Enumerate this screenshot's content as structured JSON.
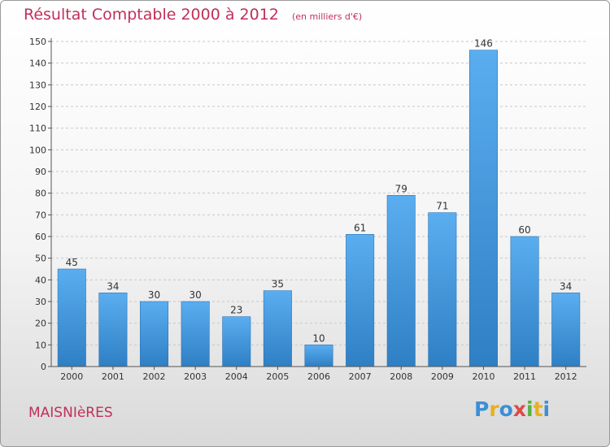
{
  "chart_data": {
    "type": "bar",
    "title": "Résultat Comptable 2000 à 2012",
    "subtitle": "(en milliers d'€)",
    "categories": [
      "2000",
      "2001",
      "2002",
      "2003",
      "2004",
      "2005",
      "2006",
      "2007",
      "2008",
      "2009",
      "2010",
      "2011",
      "2012"
    ],
    "values": [
      45,
      34,
      30,
      30,
      23,
      35,
      10,
      61,
      79,
      71,
      146,
      60,
      34
    ],
    "ylim": [
      0,
      150
    ],
    "yticks": [
      0,
      10,
      20,
      30,
      40,
      50,
      60,
      70,
      80,
      90,
      100,
      110,
      120,
      130,
      140,
      150
    ],
    "grid": true,
    "bar_color": "#4fa3e3"
  },
  "footer": {
    "town": "MAISNIèRES",
    "logo_letters": [
      "P",
      "r",
      "o",
      "x",
      "i",
      "t",
      "i"
    ],
    "logo_colors": [
      "#3b8fd6",
      "#e8b020",
      "#3b8fd6",
      "#e04848",
      "#58b040",
      "#e8b020",
      "#3b8fd6"
    ]
  }
}
